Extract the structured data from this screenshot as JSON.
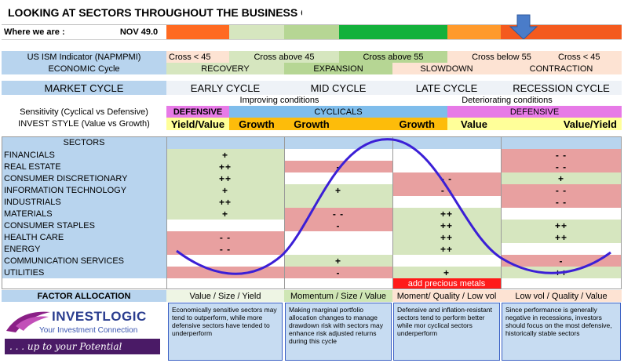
{
  "title": "LOOKING AT SECTORS THROUGHOUT THE BUSINESS CYCLE",
  "where": {
    "label": "Where we are :",
    "value": "NOV  49.0"
  },
  "colors": {
    "early": "#ff6a21",
    "recovery": "#d6e6bf",
    "expansion": "#b6d694",
    "green": "#13b13b",
    "orange": "#ff9a2c",
    "red": "#f45a1e",
    "curve": "#3b1fd6"
  },
  "ism": {
    "label": "US ISM Indicator (NAPMPMI)",
    "values": [
      "Cross < 45",
      "Cross above 45",
      "Cross above 55",
      "Cross below 55",
      "Cross < 45"
    ]
  },
  "economic": {
    "label": "ECONOMIC Cycle",
    "phases": [
      "RECOVERY",
      "EXPANSION",
      "SLOWDOWN",
      "CONTRACTION"
    ]
  },
  "market": {
    "label": "MARKET CYCLE",
    "phases": [
      "EARLY CYCLE",
      "MID CYCLE",
      "LATE CYCLE",
      "RECESSION CYCLE"
    ]
  },
  "conditions": {
    "improving": "Improving conditions",
    "deteriorating": "Deteriorating conditions"
  },
  "sensitivity": {
    "label": "Sensitivity (Cyclical vs Defensive)",
    "defensive1": "DEFENSIVE",
    "cyclicals": "CYCLICALS",
    "defensive2": "DEFENSIVE"
  },
  "invest": {
    "label": "INVEST STYLE (Value vs Growth)",
    "styles": [
      "Yield/Value",
      "Growth",
      "Growth",
      "Growth",
      "Value",
      "Value/Yield"
    ]
  },
  "sectors_header": "SECTORS",
  "sectors": [
    {
      "name": "FINANCIALS",
      "signals": [
        "+",
        "",
        "",
        "- -"
      ]
    },
    {
      "name": "REAL ESTATE",
      "signals": [
        "++",
        "-",
        "",
        "- -"
      ]
    },
    {
      "name": "CONSUMER DISCRETIONARY",
      "signals": [
        "++",
        "",
        "- -",
        "+"
      ]
    },
    {
      "name": "INFORMATION TECHNOLOGY",
      "signals": [
        "+",
        "+",
        "- -",
        "- -"
      ]
    },
    {
      "name": "INDUSTRIALS",
      "signals": [
        "++",
        "",
        "",
        "- -"
      ]
    },
    {
      "name": "MATERIALS",
      "signals": [
        "+",
        "- -",
        "++",
        ""
      ]
    },
    {
      "name": "CONSUMER STAPLES",
      "signals": [
        "",
        "-",
        "++",
        "++"
      ]
    },
    {
      "name": "HEALTH CARE",
      "signals": [
        "- -",
        "",
        "++",
        "++"
      ]
    },
    {
      "name": "ENERGY",
      "signals": [
        "- -",
        "",
        "++",
        ""
      ]
    },
    {
      "name": "COMMUNICATION SERVICES",
      "signals": [
        "",
        "+",
        "",
        "-"
      ]
    },
    {
      "name": "UTILITIES",
      "signals": [
        "",
        "-",
        "+",
        "++"
      ]
    }
  ],
  "precious": "add precious metals",
  "factor": {
    "label": "FACTOR ALLOCATION",
    "values": [
      "Value / Size / Yield",
      "Momentum / Size / Value",
      "Moment/ Quality / Low vol",
      "Low vol / Quality / Value"
    ]
  },
  "notes": [
    "Economically sensitive sectors may tend to outperform, while more defensive sectors have tended to underperform",
    "Making marginal portfolio allocation changes to manage drawdown risk with sectors may enhance risk adjusted returns during this cycle",
    "Defensive and inflation-resistant sectors tend to perform better while mor cyclical sectors underperform",
    "Since performance is generally negative in recessions, investors should focus on the most defensive, historically stable sectors"
  ],
  "logo": {
    "name": "INVESTLOGIC",
    "tagline": "Your Investment Connection",
    "slogan": ". . . up to your Potential"
  }
}
